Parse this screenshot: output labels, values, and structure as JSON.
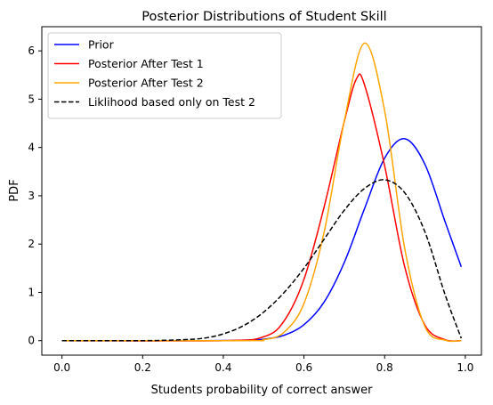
{
  "chart_data": {
    "type": "line",
    "title": "Posterior Distributions of Student Skill",
    "xlabel": "Students probability of correct answer",
    "ylabel": "PDF",
    "xlim": [
      -0.05,
      1.04
    ],
    "ylim": [
      -0.3,
      6.5
    ],
    "xticks": [
      0.0,
      0.2,
      0.4,
      0.6,
      0.8,
      1.0
    ],
    "xtick_labels": [
      "0.0",
      "0.2",
      "0.4",
      "0.6",
      "0.8",
      "1.0"
    ],
    "yticks": [
      0,
      1,
      2,
      3,
      4,
      5,
      6
    ],
    "ytick_labels": [
      "0",
      "1",
      "2",
      "3",
      "4",
      "5",
      "6"
    ],
    "grid": false,
    "legend_position": "top-left",
    "series": [
      {
        "name": "Prior",
        "color": "#0000ff",
        "dash": "solid",
        "x": [
          0.0,
          0.35,
          0.45,
          0.5,
          0.55,
          0.6,
          0.65,
          0.7,
          0.75,
          0.8,
          0.85,
          0.9,
          0.95,
          0.99
        ],
        "y": [
          0.0,
          0.0,
          0.01,
          0.03,
          0.11,
          0.33,
          0.8,
          1.62,
          2.73,
          3.78,
          4.18,
          3.65,
          2.46,
          1.53
        ]
      },
      {
        "name": "Posterior After Test 1",
        "color": "#ff0000",
        "dash": "solid",
        "x": [
          0.0,
          0.4,
          0.5,
          0.55,
          0.6,
          0.65,
          0.7,
          0.73,
          0.75,
          0.8,
          0.85,
          0.9,
          0.95,
          0.99
        ],
        "y": [
          0.0,
          0.0,
          0.08,
          0.4,
          1.27,
          2.77,
          4.54,
          5.42,
          5.3,
          3.62,
          1.52,
          0.32,
          0.02,
          0.0
        ]
      },
      {
        "name": "Posterior After Test 2",
        "color": "#ffa500",
        "dash": "solid",
        "x": [
          0.0,
          0.45,
          0.5,
          0.55,
          0.6,
          0.65,
          0.7,
          0.75,
          0.8,
          0.85,
          0.9,
          0.95,
          0.99
        ],
        "y": [
          0.0,
          0.0,
          0.02,
          0.17,
          0.77,
          2.25,
          4.55,
          6.16,
          4.76,
          1.9,
          0.29,
          0.01,
          0.0
        ]
      },
      {
        "name": "Liklihood based only on Test 2",
        "color": "#000000",
        "dash": "dashed",
        "x": [
          0.0,
          0.2,
          0.3,
          0.35,
          0.4,
          0.45,
          0.5,
          0.55,
          0.6,
          0.65,
          0.7,
          0.75,
          0.8,
          0.85,
          0.9,
          0.95,
          0.99
        ],
        "y": [
          0.0,
          0.0,
          0.02,
          0.05,
          0.14,
          0.31,
          0.59,
          0.99,
          1.5,
          2.1,
          2.7,
          3.15,
          3.33,
          3.06,
          2.25,
          0.95,
          0.05
        ]
      }
    ]
  }
}
